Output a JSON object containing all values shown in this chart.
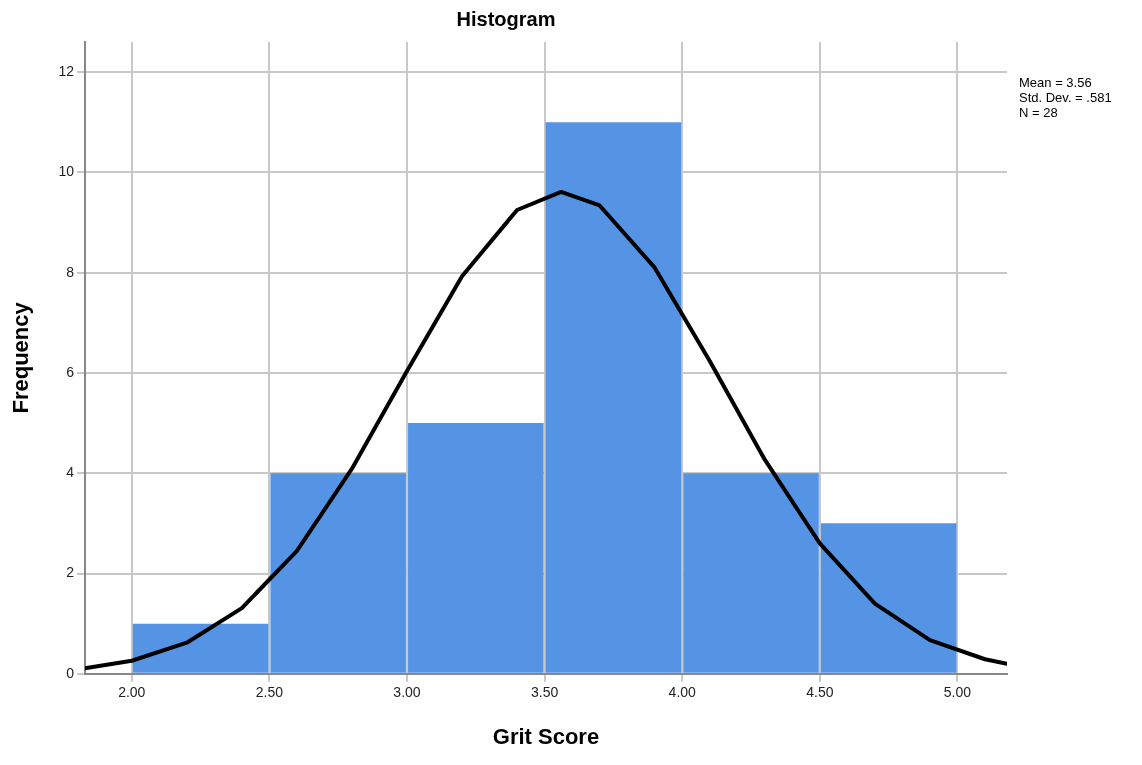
{
  "chart_data": {
    "type": "histogram",
    "title": "Histogram",
    "xlabel": "Grit Score",
    "ylabel": "Frequency",
    "bins": [
      2.0,
      2.5,
      3.0,
      3.5,
      4.0,
      4.5,
      5.0
    ],
    "values": [
      1,
      4,
      5,
      11,
      4,
      3
    ],
    "color": "#5594e4",
    "series": [
      {
        "type": "line",
        "color": "#000000",
        "x": [
          1.83,
          2.0,
          2.2,
          2.4,
          2.6,
          2.8,
          3.0,
          3.2,
          3.4,
          3.56,
          3.7,
          3.9,
          4.1,
          4.3,
          4.5,
          4.7,
          4.9,
          5.1,
          5.18
        ],
        "values": [
          0.11,
          0.26,
          0.62,
          1.31,
          2.45,
          4.09,
          6.04,
          7.93,
          9.25,
          9.61,
          9.34,
          8.1,
          6.24,
          4.27,
          2.6,
          1.4,
          0.67,
          0.29,
          0.2
        ]
      }
    ],
    "xlim": [
      1.83,
      5.18
    ],
    "xticks": [
      {
        "value": 2,
        "label": "2.00"
      },
      {
        "value": 2.5,
        "label": "2.50"
      },
      {
        "value": 3,
        "label": "3.00"
      },
      {
        "value": 3.5,
        "label": "3.50"
      },
      {
        "value": 4,
        "label": "4.00"
      },
      {
        "value": 4.5,
        "label": "4.50"
      },
      {
        "value": 5,
        "label": "5.00"
      }
    ],
    "ylim": [
      0,
      12.6
    ],
    "yticks": [
      0,
      2,
      4,
      6,
      8,
      10,
      12
    ],
    "grid": true,
    "annotations": [
      "Mean = 3.56",
      "Std. Dev. = .581",
      "N = 28"
    ]
  }
}
